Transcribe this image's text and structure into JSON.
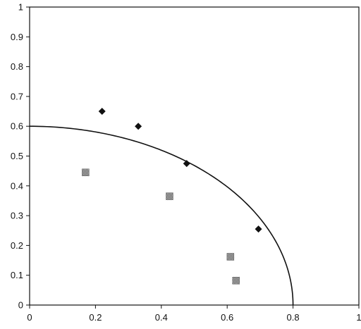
{
  "chart_data": {
    "type": "scatter",
    "title": "",
    "xlabel": "",
    "ylabel": "",
    "xlim": [
      0,
      1
    ],
    "ylim": [
      0,
      1
    ],
    "x_ticks": [
      "0",
      "0.2",
      "0.4",
      "0.6",
      "0.8",
      "1"
    ],
    "y_ticks": [
      "0",
      "0.1",
      "0.2",
      "0.3",
      "0.4",
      "0.5",
      "0.6",
      "0.7",
      "0.8",
      "0.9",
      "1"
    ],
    "x_tick_values": [
      0,
      0.2,
      0.4,
      0.6,
      0.8,
      1
    ],
    "y_tick_values": [
      0,
      0.1,
      0.2,
      0.3,
      0.4,
      0.5,
      0.6,
      0.7,
      0.8,
      0.9,
      1
    ],
    "grid": false,
    "legend": "none",
    "series": [
      {
        "marker": "diamond",
        "color": "#111111",
        "points": [
          [
            0.22,
            0.65
          ],
          [
            0.33,
            0.6
          ],
          [
            0.477,
            0.475
          ],
          [
            0.695,
            0.255
          ]
        ]
      },
      {
        "marker": "checkered-square",
        "color": "#555555",
        "points": [
          [
            0.17,
            0.445
          ],
          [
            0.425,
            0.365
          ],
          [
            0.61,
            0.162
          ],
          [
            0.627,
            0.082
          ]
        ]
      }
    ],
    "curve": {
      "type": "quarter-ellipse",
      "x_intercept": 0.8,
      "y_intercept": 0.6,
      "color": "#111111"
    }
  }
}
